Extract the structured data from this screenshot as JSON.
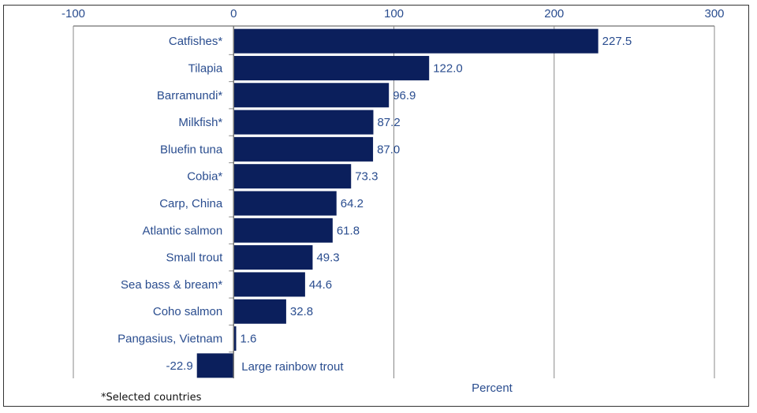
{
  "chart_data": {
    "type": "bar",
    "orientation": "horizontal",
    "title": "",
    "xlabel": "Percent",
    "ylabel": "",
    "xlim": [
      -100,
      300
    ],
    "xticks": [
      -100,
      0,
      100,
      200,
      300
    ],
    "xtick_labels": [
      "-100",
      "0",
      "100",
      "200",
      "300"
    ],
    "grid": true,
    "categories": [
      "Catfishes*",
      "Tilapia",
      "Barramundi*",
      "Milkfish*",
      "Bluefin tuna",
      "Cobia*",
      "Carp, China",
      "Atlantic salmon",
      "Small trout",
      "Sea bass & bream*",
      "Coho salmon",
      "Pangasius, Vietnam",
      "Large rainbow trout"
    ],
    "values": [
      227.5,
      122.0,
      96.9,
      87.2,
      87.0,
      73.3,
      64.2,
      61.8,
      49.3,
      44.6,
      32.8,
      1.6,
      -22.9
    ],
    "value_labels": [
      "227.5",
      "122.0",
      "96.9",
      "87.2",
      "87.0",
      "73.3",
      "64.2",
      "61.8",
      "49.3",
      "44.6",
      "32.8",
      "1.6",
      "-22.9"
    ],
    "bar_color": "#0b1f5c",
    "footnote": "*Selected countries"
  }
}
